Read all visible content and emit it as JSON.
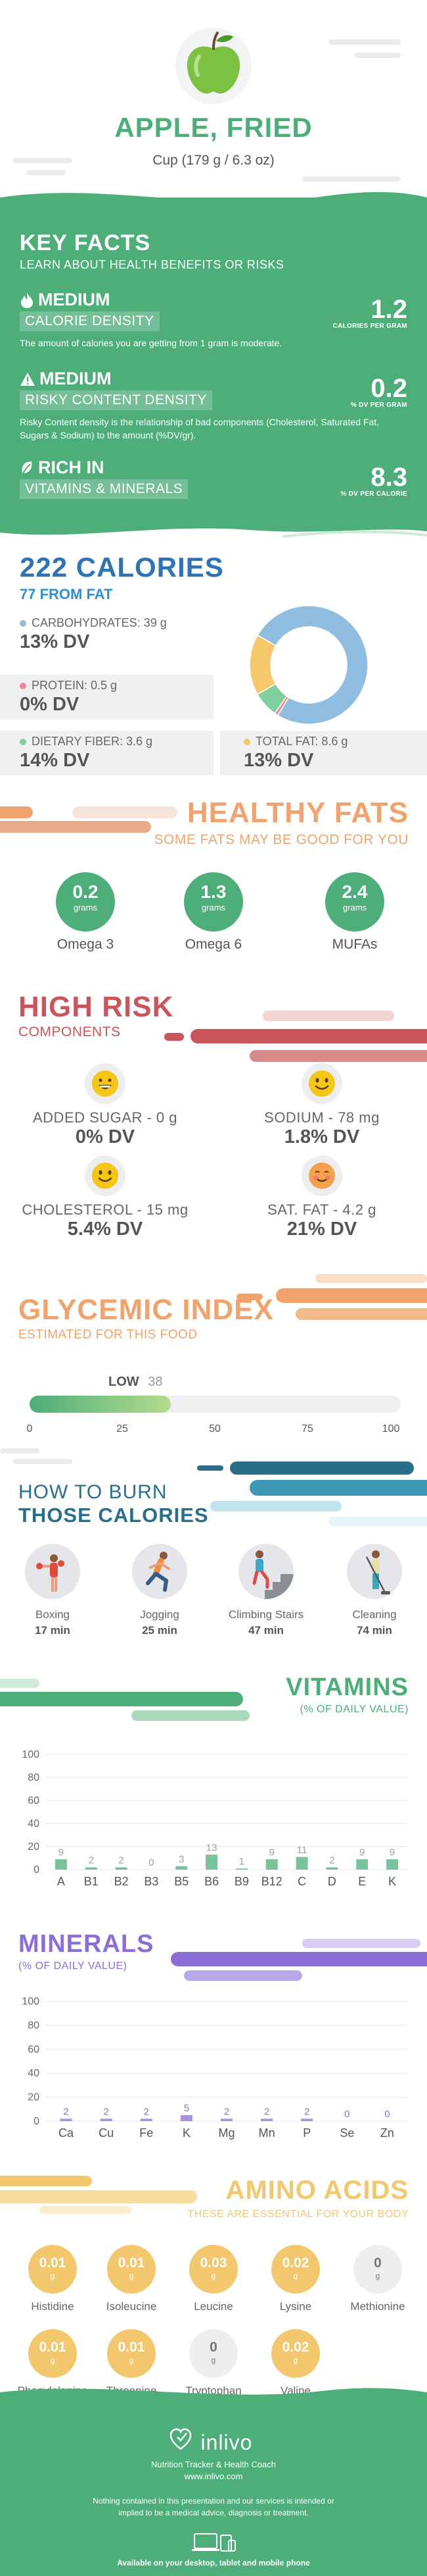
{
  "header": {
    "title": "APPLE, FRIED",
    "serving": "Cup (179 g / 6.3 oz)"
  },
  "key_facts": {
    "heading": "KEY FACTS",
    "subheading": "LEARN ABOUT HEALTH BENEFITS OR RISKS",
    "items": [
      {
        "level": "MEDIUM",
        "label": "CALORIE DENSITY",
        "value": "1.2",
        "unit": "CALORIES PER GRAM",
        "icon": "flame-icon",
        "description": "The amount of calories you are getting from 1 gram is moderate."
      },
      {
        "level": "MEDIUM",
        "label": "RISKY CONTENT DENSITY",
        "value": "0.2",
        "unit": "% DV PER GRAM",
        "icon": "warning-icon",
        "description": "Risky Content density is the relationship of bad components (Cholesterol, Saturated Fat, Sugars & Sodium) to the amount (%DV/gr)."
      },
      {
        "level": "RICH  IN",
        "label": "VITAMINS & MINERALS",
        "value": "8.3",
        "unit": "% DV PER CALORIE",
        "icon": "leaf-icon",
        "description": ""
      }
    ]
  },
  "calories": {
    "heading": "222 CALORIES",
    "from_fat": "77 FROM FAT",
    "nutrients": [
      {
        "label": "CARBOHYDRATES: 39 g",
        "dv": "13% DV",
        "color": "#8fbde2"
      },
      {
        "label": "PROTEIN: 0.5 g",
        "dv": "0% DV",
        "color": "#f08a8a"
      },
      {
        "label": "DIETARY FIBER: 3.6 g",
        "dv": "14% DV",
        "color": "#7fcf9f"
      },
      {
        "label": "TOTAL FAT: 8.6 g",
        "dv": "13% DV",
        "color": "#f7c86b"
      }
    ],
    "donut": [
      {
        "name": "carbohydrates",
        "value": 39,
        "color": "#8fbde2"
      },
      {
        "name": "protein",
        "value": 0.5,
        "color": "#f08a8a"
      },
      {
        "name": "dietary fiber",
        "value": 3.6,
        "color": "#7fcf9f"
      },
      {
        "name": "total fat",
        "value": 8.6,
        "color": "#f7c86b"
      }
    ]
  },
  "healthy_fats": {
    "heading": "HEALTHY FATS",
    "sub": "SOME FATS MAY BE GOOD FOR YOU",
    "items": [
      {
        "value": "0.2",
        "unit": "grams",
        "name": "Omega 3"
      },
      {
        "value": "1.3",
        "unit": "grams",
        "name": "Omega 6"
      },
      {
        "value": "2.4",
        "unit": "grams",
        "name": "MUFAs"
      }
    ]
  },
  "high_risk": {
    "heading": "HIGH RISK",
    "sub": "COMPONENTS",
    "items": [
      {
        "label": "ADDED SUGAR - 0 g",
        "dv": "0% DV",
        "icon": "grin-smiley-icon"
      },
      {
        "label": "SODIUM - 78 mg",
        "dv": "1.8% DV",
        "icon": "smile-smiley-icon"
      },
      {
        "label": "CHOLESTEROL - 15 mg",
        "dv": "5.4% DV",
        "icon": "smile-smiley-icon"
      },
      {
        "label": "SAT. FAT - 4.2 g",
        "dv": "21% DV",
        "icon": "blush-smiley-icon"
      }
    ]
  },
  "glycemic": {
    "heading": "GLYCEMIC INDEX",
    "sub": "ESTIMATED FOR THIS FOOD",
    "level": "LOW",
    "value": "38",
    "fraction": 0.38,
    "ticks": [
      "0",
      "25",
      "50",
      "75",
      "100"
    ]
  },
  "burn": {
    "line1": "HOW TO BURN",
    "line2": "THOSE CALORIES",
    "activities": [
      {
        "name": "Boxing",
        "minutes": "17 min"
      },
      {
        "name": "Jogging",
        "minutes": "25 min"
      },
      {
        "name": "Climbing Stairs",
        "minutes": "47 min"
      },
      {
        "name": "Cleaning",
        "minutes": "74 min"
      }
    ]
  },
  "vitamins": {
    "heading": "VITAMINS",
    "sub": "(% OF DAILY VALUE)"
  },
  "minerals": {
    "heading": "MINERALS",
    "sub": "(% OF DAILY VALUE)"
  },
  "chart_data": [
    {
      "type": "bar",
      "title": "VITAMINS",
      "categories": [
        "A",
        "B1",
        "B2",
        "B3",
        "B5",
        "B6",
        "B9",
        "B12",
        "C",
        "D",
        "E",
        "K"
      ],
      "values": [
        9,
        2,
        2,
        0,
        3,
        13,
        1,
        9,
        11,
        2,
        9,
        9
      ],
      "ylim": [
        0,
        100
      ],
      "yticks": [
        "0",
        "20",
        "40",
        "60",
        "80",
        "100"
      ],
      "grid": true,
      "color": "#4dae7a"
    },
    {
      "type": "bar",
      "title": "MINERALS",
      "categories": [
        "Ca",
        "Cu",
        "Fe",
        "K",
        "Mg",
        "Mn",
        "P",
        "Se",
        "Zn"
      ],
      "values": [
        2,
        2,
        2,
        5,
        2,
        2,
        2,
        0,
        0
      ],
      "ylim": [
        0,
        100
      ],
      "yticks": [
        "0",
        "20",
        "40",
        "60",
        "80",
        "100"
      ],
      "grid": true,
      "color": "#8b6fd6"
    }
  ],
  "amino": {
    "heading": "AMINO ACIDS",
    "sub": "THESE ARE ESSENTIAL FOR YOUR BODY",
    "unit": "g",
    "items": [
      {
        "value": "0.01",
        "name": "Histidine",
        "color": "#f2c76e"
      },
      {
        "value": "0.01",
        "name": "Isoleucine",
        "color": "#f2c76e"
      },
      {
        "value": "0.03",
        "name": "Leucine",
        "color": "#f2c76e"
      },
      {
        "value": "0.02",
        "name": "Lysine",
        "color": "#f2c76e"
      },
      {
        "value": "0",
        "name": "Methionine",
        "color": "#eceef0"
      },
      {
        "value": "0.01",
        "name": "Phenylalanine",
        "color": "#f2c76e"
      },
      {
        "value": "0.01",
        "name": "Threonine",
        "color": "#f2c76e"
      },
      {
        "value": "0",
        "name": "Tryptophan",
        "color": "#eceef0"
      },
      {
        "value": "0.02",
        "name": "Valine",
        "color": "#f2c76e"
      }
    ]
  },
  "footer": {
    "brand": "inlivo",
    "tagline": "Nutrition Tracker & Health Coach",
    "url": "www.inlivo.com",
    "disclaimer": "Nothing contained in this presentation and our services is intended or implied to be a medical advice, diagnosis or treatment.",
    "available": "Available on your desktop, tablet and mobile phone"
  }
}
